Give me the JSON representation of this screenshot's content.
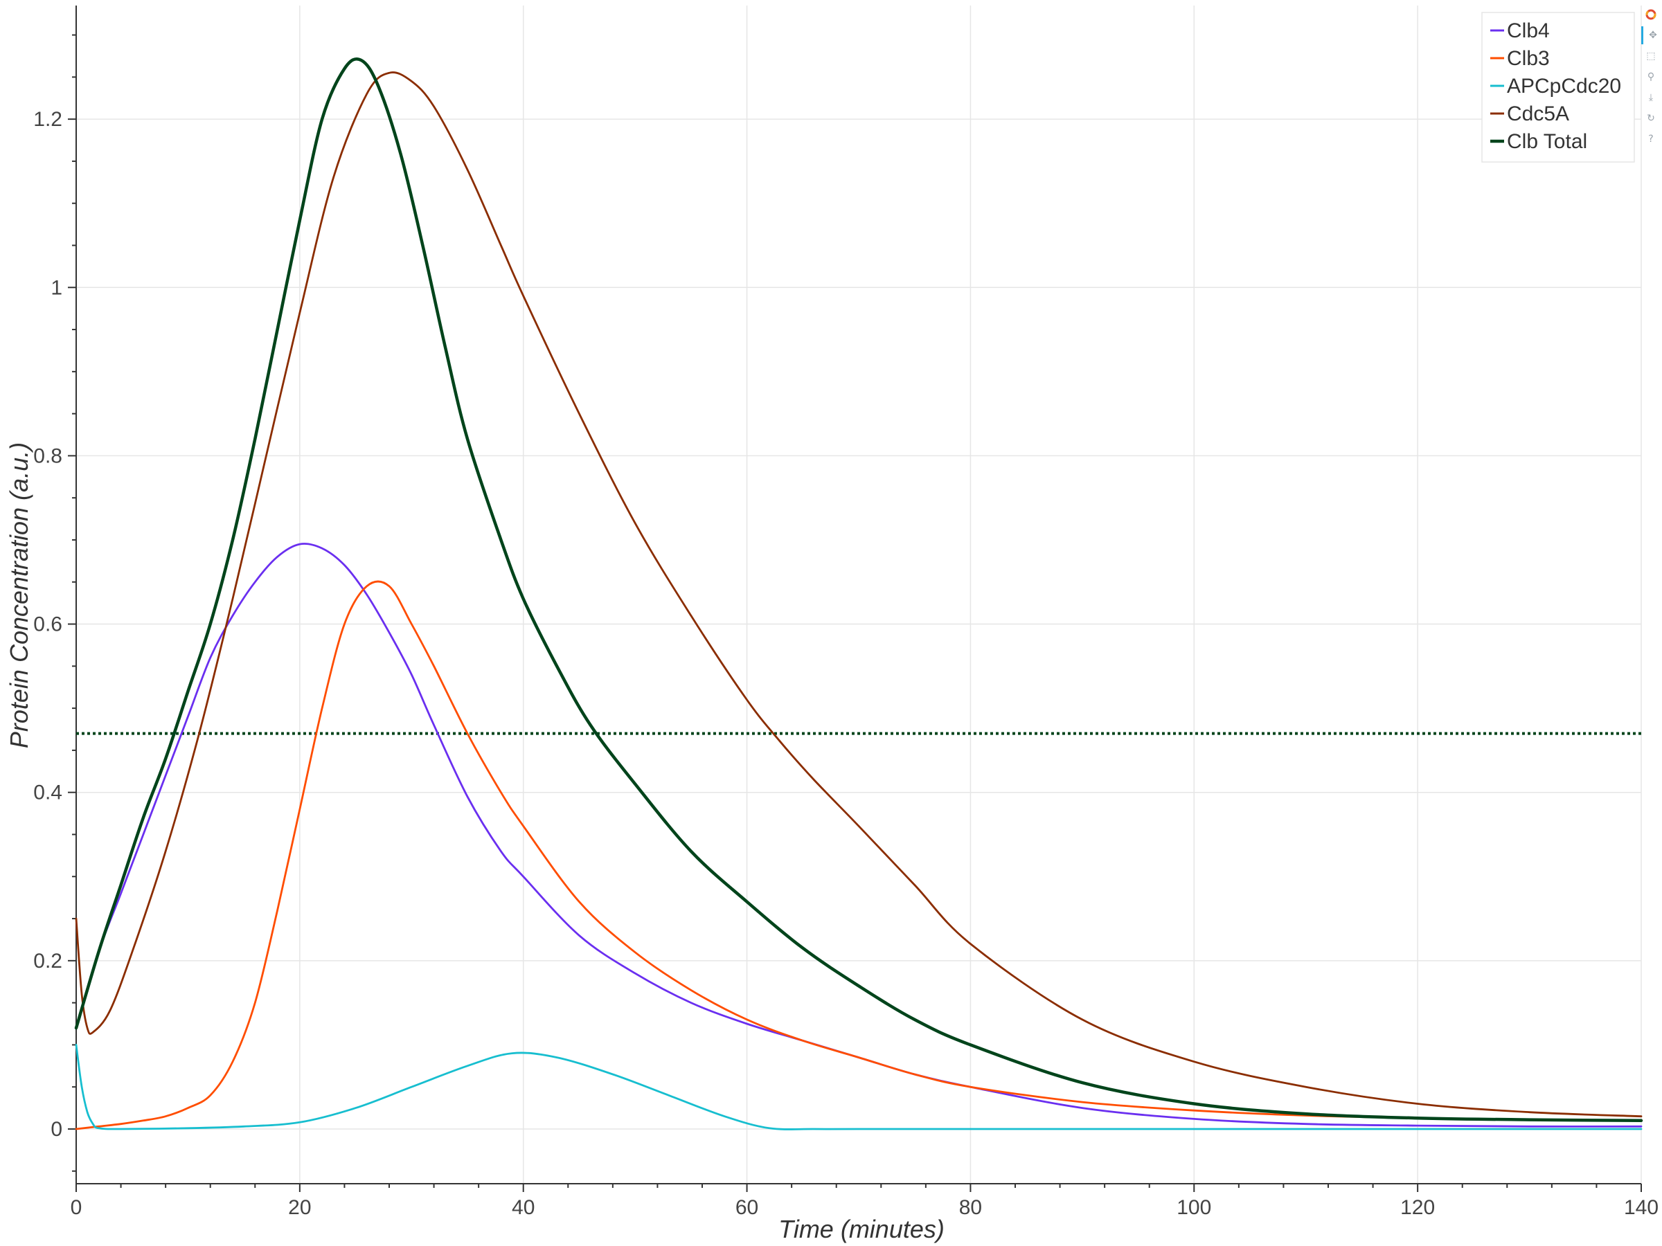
{
  "chart_data": {
    "type": "line",
    "xlabel": "Time (minutes)",
    "ylabel": "Protein Concentration (a.u.)",
    "xlim": [
      0,
      140
    ],
    "ylim": [
      -0.065,
      1.335
    ],
    "x_ticks": [
      0,
      20,
      40,
      60,
      80,
      100,
      120,
      140
    ],
    "y_ticks": [
      0,
      0.2,
      0.4,
      0.6,
      0.8,
      1,
      1.2
    ],
    "x_tick_labels": [
      "0",
      "20",
      "40",
      "60",
      "80",
      "100",
      "120",
      "140"
    ],
    "y_tick_labels": [
      "0",
      "0.2",
      "0.4",
      "0.6",
      "0.8",
      "1",
      "1.2"
    ],
    "grid": true,
    "legend_position": "top-right",
    "threshold": {
      "y": 0.47,
      "style": "dotted",
      "color": "#00441b"
    },
    "series": [
      {
        "name": "Clb4",
        "color": "#6a2ff0",
        "x": [
          0,
          2,
          4,
          6,
          8,
          10,
          12,
          14,
          16,
          18,
          20,
          22,
          24,
          26,
          28,
          30,
          32,
          35,
          38,
          40,
          45,
          50,
          55,
          60,
          65,
          70,
          75,
          80,
          90,
          100,
          110,
          120,
          130,
          140
        ],
        "y": [
          0.12,
          0.21,
          0.28,
          0.35,
          0.42,
          0.49,
          0.56,
          0.61,
          0.65,
          0.68,
          0.695,
          0.69,
          0.67,
          0.635,
          0.59,
          0.54,
          0.48,
          0.395,
          0.33,
          0.3,
          0.23,
          0.185,
          0.15,
          0.125,
          0.105,
          0.085,
          0.065,
          0.05,
          0.025,
          0.012,
          0.006,
          0.004,
          0.003,
          0.003
        ]
      },
      {
        "name": "Clb3",
        "color": "#ff4d00",
        "x": [
          0,
          2,
          4,
          6,
          8,
          10,
          12,
          14,
          16,
          18,
          20,
          22,
          24,
          26,
          28,
          30,
          32,
          35,
          38,
          40,
          45,
          50,
          55,
          60,
          65,
          70,
          75,
          80,
          90,
          100,
          110,
          120,
          130,
          140
        ],
        "y": [
          0,
          0.003,
          0.006,
          0.01,
          0.015,
          0.025,
          0.04,
          0.08,
          0.15,
          0.26,
          0.38,
          0.5,
          0.6,
          0.645,
          0.645,
          0.6,
          0.55,
          0.47,
          0.4,
          0.36,
          0.27,
          0.21,
          0.165,
          0.13,
          0.105,
          0.085,
          0.065,
          0.05,
          0.032,
          0.022,
          0.016,
          0.013,
          0.011,
          0.01
        ]
      },
      {
        "name": "APCpCdc20",
        "color": "#17becf",
        "x": [
          0,
          0.5,
          1,
          1.5,
          2,
          4,
          10,
          15,
          20,
          25,
          30,
          35,
          39,
          43,
          48,
          53,
          58,
          62,
          66,
          70,
          80,
          90,
          100,
          110,
          120,
          130,
          140
        ],
        "y": [
          0.1,
          0.05,
          0.02,
          0.006,
          0.001,
          0,
          0.001,
          0.003,
          0.008,
          0.025,
          0.05,
          0.075,
          0.09,
          0.085,
          0.065,
          0.04,
          0.015,
          0.001,
          0,
          0,
          0,
          0,
          0,
          0,
          0,
          0,
          0
        ]
      },
      {
        "name": "Cdc5A",
        "color": "#8b2d00",
        "x": [
          0,
          0.5,
          1,
          1.5,
          3,
          5,
          8,
          11,
          14,
          17,
          20,
          23,
          26,
          28,
          30,
          32,
          35,
          38,
          40,
          45,
          50,
          55,
          60,
          63,
          66,
          70,
          75,
          80,
          90,
          100,
          110,
          120,
          130,
          140
        ],
        "y": [
          0.25,
          0.16,
          0.12,
          0.115,
          0.14,
          0.21,
          0.33,
          0.47,
          0.63,
          0.8,
          0.97,
          1.13,
          1.23,
          1.255,
          1.245,
          1.215,
          1.14,
          1.05,
          0.99,
          0.85,
          0.72,
          0.61,
          0.51,
          0.46,
          0.415,
          0.36,
          0.29,
          0.22,
          0.13,
          0.08,
          0.05,
          0.03,
          0.02,
          0.015
        ]
      },
      {
        "name": "Clb Total",
        "color": "#00441b",
        "x": [
          0,
          2,
          4,
          6,
          8,
          10,
          12,
          14,
          16,
          18,
          20,
          22,
          24,
          25.5,
          27,
          29,
          31,
          33,
          35,
          38,
          40,
          43,
          46,
          50,
          55,
          60,
          65,
          70,
          75,
          80,
          90,
          100,
          110,
          120,
          130,
          140
        ],
        "y": [
          0.12,
          0.21,
          0.29,
          0.37,
          0.44,
          0.52,
          0.6,
          0.7,
          0.82,
          0.95,
          1.08,
          1.2,
          1.26,
          1.27,
          1.24,
          1.16,
          1.05,
          0.93,
          0.82,
          0.7,
          0.63,
          0.55,
          0.48,
          0.41,
          0.33,
          0.27,
          0.215,
          0.17,
          0.13,
          0.1,
          0.055,
          0.03,
          0.018,
          0.013,
          0.011,
          0.01
        ]
      }
    ]
  }
}
